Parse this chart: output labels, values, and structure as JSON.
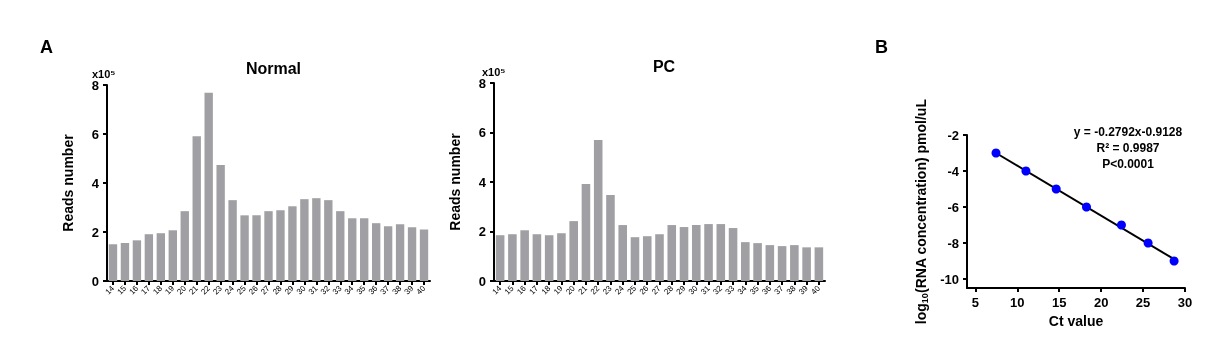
{
  "chart_data": [
    {
      "type": "bar",
      "title": "Normal",
      "ylabel": "Reads number",
      "annotations": [
        "A",
        "x10⁵"
      ],
      "categories": [
        "14",
        "15",
        "16",
        "17",
        "18",
        "19",
        "20",
        "21",
        "22",
        "23",
        "24",
        "25",
        "26",
        "27",
        "28",
        "29",
        "30",
        "31",
        "32",
        "33",
        "34",
        "35",
        "36",
        "37",
        "38",
        "39",
        "40"
      ],
      "values": [
        1.5,
        1.55,
        1.66,
        1.91,
        1.95,
        2.07,
        2.85,
        5.91,
        7.68,
        4.73,
        3.3,
        2.68,
        2.68,
        2.85,
        2.89,
        3.05,
        3.34,
        3.38,
        3.3,
        2.85,
        2.56,
        2.56,
        2.36,
        2.23,
        2.32,
        2.19,
        2.1
      ],
      "color": "#a0a0a4",
      "ylim": [
        0,
        8
      ],
      "yticks": [
        0,
        2,
        4,
        6,
        8
      ],
      "grid": false
    },
    {
      "type": "bar",
      "title": "PC",
      "ylabel": "Reads number",
      "annotations": [
        "x10⁵"
      ],
      "categories": [
        "14",
        "15",
        "16",
        "17",
        "18",
        "19",
        "20",
        "21",
        "22",
        "23",
        "24",
        "25",
        "26",
        "27",
        "28",
        "29",
        "30",
        "31",
        "32",
        "33",
        "34",
        "35",
        "36",
        "37",
        "38",
        "39",
        "40"
      ],
      "values": [
        1.85,
        1.89,
        2.05,
        1.89,
        1.85,
        1.93,
        2.42,
        3.92,
        5.7,
        3.47,
        2.26,
        1.77,
        1.81,
        1.89,
        2.26,
        2.18,
        2.26,
        2.3,
        2.3,
        2.14,
        1.57,
        1.53,
        1.45,
        1.41,
        1.45,
        1.36,
        1.36
      ],
      "color": "#a0a0a4",
      "ylim": [
        0,
        8
      ],
      "yticks": [
        0,
        2,
        4,
        6,
        8
      ],
      "grid": false
    },
    {
      "type": "scatter",
      "xlabel": "Ct value",
      "ylabel": "log$_{10}$(RNA concentration) pmol/uL",
      "annotations": [
        "B",
        "y = -0.2792x-0.9128",
        "R² = 0.9987",
        "P<0.0001"
      ],
      "xlim": [
        4,
        30
      ],
      "xticks": [
        5,
        10,
        15,
        20,
        25,
        30
      ],
      "ylim": [
        -10.5,
        -2
      ],
      "yticks": [
        -10,
        -8,
        -6,
        -4,
        -2
      ],
      "grid": false,
      "series": [
        {
          "type": "scatter",
          "color": "#0000ff",
          "marker": "circle",
          "x": [
            7.46,
            11.03,
            14.64,
            18.25,
            22.42,
            25.6,
            28.7
          ],
          "values": [
            -3,
            -4,
            -5,
            -6,
            -7,
            -8,
            -9
          ]
        },
        {
          "type": "line",
          "color": "#000000",
          "marker": "none",
          "x": [
            7.46,
            28.7
          ],
          "values": [
            -3.0,
            -8.9
          ]
        }
      ]
    }
  ]
}
